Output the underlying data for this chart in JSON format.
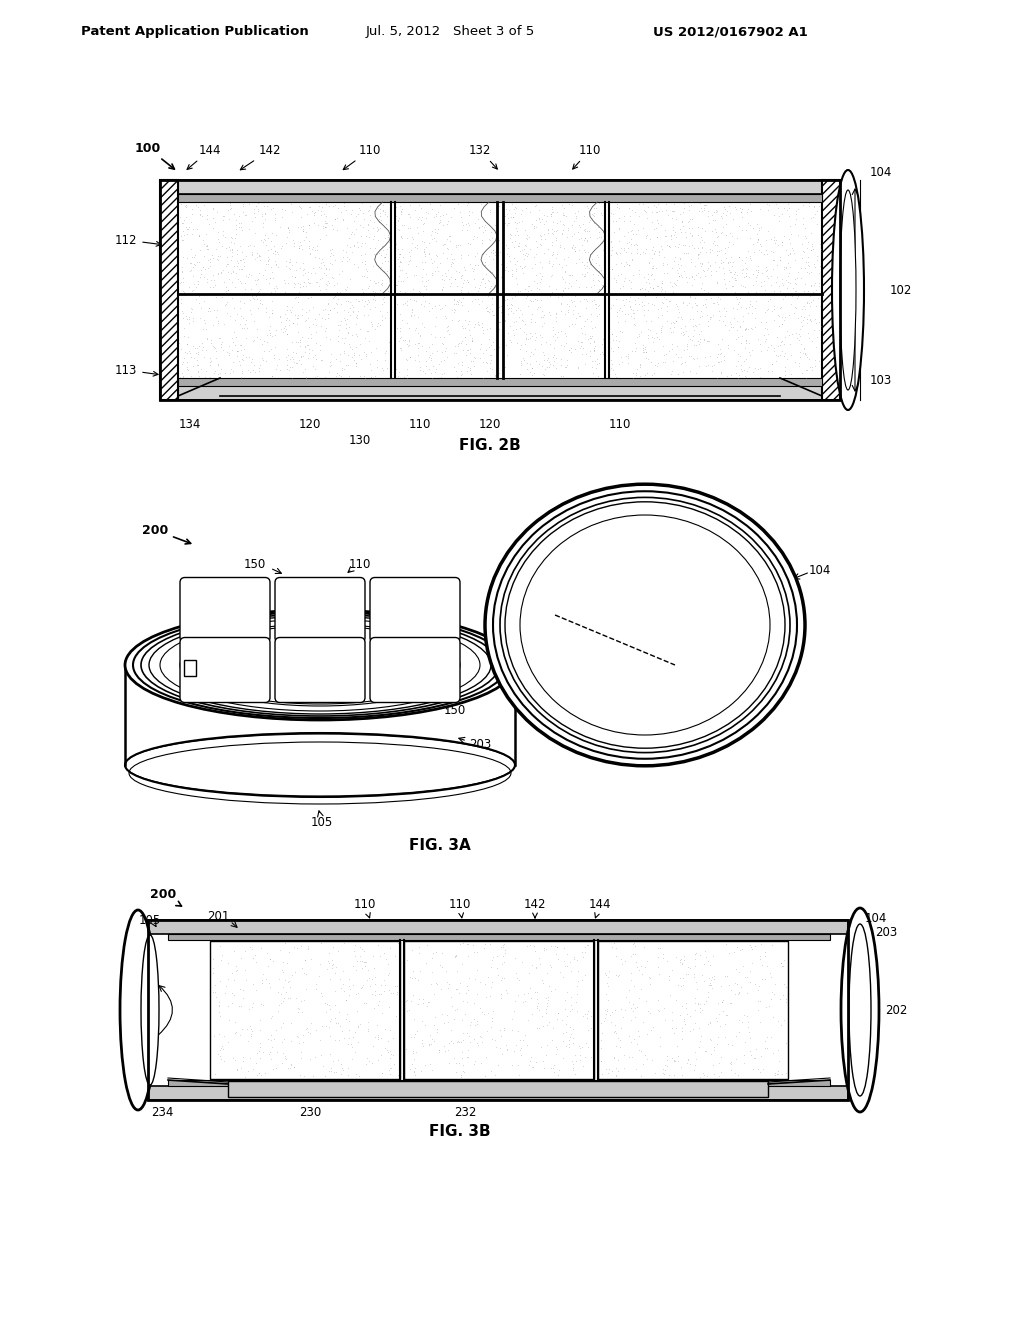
{
  "background_color": "#ffffff",
  "header_left": "Patent Application Publication",
  "header_mid": "Jul. 5, 2012   Sheet 3 of 5",
  "header_right": "US 2012/0167902 A1",
  "fig2b_label": "FIG. 2B",
  "fig3a_label": "FIG. 3A",
  "fig3b_label": "FIG. 3B",
  "line_color": "#000000",
  "text_color": "#000000"
}
